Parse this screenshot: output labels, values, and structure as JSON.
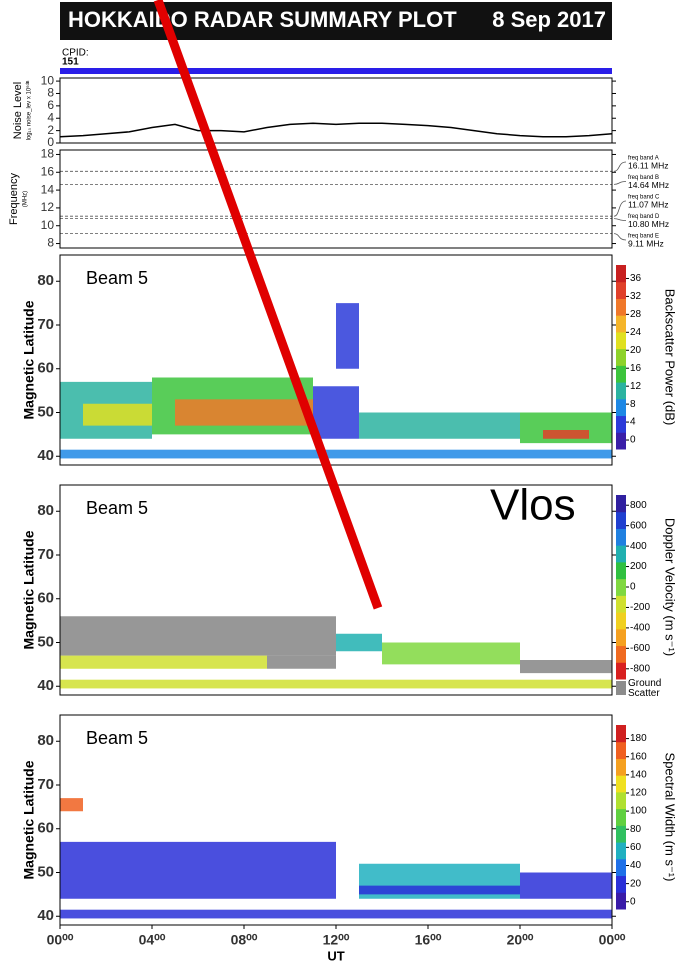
{
  "header": {
    "title": "HOKKAIDO RADAR SUMMARY PLOT",
    "date": "8 Sep 2017",
    "cpid_label": "CPID:",
    "cpid": "151"
  },
  "annotation": "Vlos",
  "chart_data": [
    {
      "type": "line",
      "ylabel": "Noise Level",
      "ylabel_sub": "log₁₀ noise_lev x 10⁶ᵈᴮ",
      "color": "#000000",
      "x": [
        0,
        1,
        2,
        3,
        4,
        5,
        6,
        7,
        8,
        9,
        10,
        11,
        12,
        13,
        14,
        15,
        16,
        17,
        18,
        19,
        20,
        21,
        22,
        23,
        24
      ],
      "values": [
        1,
        1.2,
        1.5,
        1.8,
        2.5,
        3,
        2,
        2,
        1.8,
        2.5,
        3,
        3.2,
        3,
        3.2,
        3.2,
        3,
        2.8,
        2.5,
        2,
        1.5,
        1.2,
        1,
        1,
        1.2,
        1.5
      ],
      "xlim": [
        0,
        24
      ],
      "ylim": [
        0,
        10.5
      ],
      "yticks": [
        0,
        2,
        4,
        6,
        8,
        10
      ]
    },
    {
      "type": "bands",
      "ylabel": "Frequency",
      "ylabel_sub": "(MHz)",
      "xlim": [
        0,
        24
      ],
      "ylim": [
        7.5,
        18.5
      ],
      "yticks": [
        8,
        10,
        12,
        14,
        16,
        18
      ],
      "bands": [
        {
          "name": "freq band A",
          "value": 16.11,
          "label": "16.11 MHz"
        },
        {
          "name": "freq band B",
          "value": 14.64,
          "label": "14.64 MHz"
        },
        {
          "name": "freq band C",
          "value": 11.07,
          "label": "11.07 MHz"
        },
        {
          "name": "freq band D",
          "value": 10.8,
          "label": "10.80 MHz"
        },
        {
          "name": "freq band E",
          "value": 9.11,
          "label": "9.11 MHz"
        }
      ]
    },
    {
      "type": "heatmap",
      "label": "Beam 5",
      "ylabel": "Magnetic Latitude",
      "colorbar_label": "Backscatter Power (dB)",
      "xlim": [
        0,
        24
      ],
      "ylim": [
        38,
        86
      ],
      "yticks": [
        40,
        50,
        60,
        70,
        80
      ],
      "clim": [
        -2,
        39
      ],
      "cticks": [
        0,
        4,
        8,
        12,
        16,
        20,
        24,
        28,
        32,
        36
      ],
      "colorscale": [
        "#3b1fa8",
        "#2c3bd9",
        "#1e88e5",
        "#2bb3a0",
        "#3cc43c",
        "#8ed22a",
        "#e0e020",
        "#f5b52a",
        "#f0782a",
        "#e0402a",
        "#c82020"
      ],
      "regions": [
        {
          "start": 0,
          "end": 4,
          "lat_low": 44,
          "lat_high": 57,
          "value": 12
        },
        {
          "start": 1,
          "end": 4,
          "lat_low": 47,
          "lat_high": 52,
          "value": 24
        },
        {
          "start": 4,
          "end": 11,
          "lat_low": 45,
          "lat_high": 58,
          "value": 16
        },
        {
          "start": 5,
          "end": 11,
          "lat_low": 47,
          "lat_high": 53,
          "value": 28
        },
        {
          "start": 11,
          "end": 13,
          "lat_low": 44,
          "lat_high": 56,
          "value": 4
        },
        {
          "start": 13,
          "end": 20,
          "lat_low": 44,
          "lat_high": 50,
          "value": 12
        },
        {
          "start": 20,
          "end": 24,
          "lat_low": 43,
          "lat_high": 50,
          "value": 16
        },
        {
          "start": 21,
          "end": 23,
          "lat_low": 44,
          "lat_high": 46,
          "value": 32
        },
        {
          "start": 0,
          "end": 24,
          "lat_low": 39.5,
          "lat_high": 41.5,
          "value": 8
        },
        {
          "start": 12,
          "end": 13,
          "lat_low": 60,
          "lat_high": 75,
          "value": 4
        }
      ]
    },
    {
      "type": "heatmap",
      "label": "Beam 5",
      "ylabel": "Magnetic Latitude",
      "colorbar_label": "Doppler Velocity (m s⁻¹)",
      "ground_scatter_label": "Ground Scatter",
      "ground_scatter_color": "#8c8c8c",
      "xlim": [
        0,
        24
      ],
      "ylim": [
        38,
        86
      ],
      "yticks": [
        40,
        50,
        60,
        70,
        80
      ],
      "clim": [
        -900,
        900
      ],
      "cticks": [
        -800,
        -600,
        -400,
        -200,
        0,
        200,
        400,
        600,
        800
      ],
      "colorscale": [
        "#d82020",
        "#f06a20",
        "#f5a020",
        "#f0d020",
        "#d0e030",
        "#80d840",
        "#30c040",
        "#20b0b0",
        "#2080e0",
        "#2040d0",
        "#3020a0"
      ],
      "ground_scatter": [
        {
          "start": 0,
          "end": 12,
          "lat_low": 47,
          "lat_high": 56
        },
        {
          "start": 9,
          "end": 12,
          "lat_low": 44,
          "lat_high": 47
        },
        {
          "start": 20,
          "end": 24,
          "lat_low": 43,
          "lat_high": 46
        }
      ],
      "regions": [
        {
          "start": 0,
          "end": 9,
          "lat_low": 44,
          "lat_high": 47,
          "value": -200
        },
        {
          "start": 12,
          "end": 14,
          "lat_low": 48,
          "lat_high": 52,
          "value": 300
        },
        {
          "start": 14,
          "end": 20,
          "lat_low": 45,
          "lat_high": 50,
          "value": 0
        },
        {
          "start": 0,
          "end": 24,
          "lat_low": 39.5,
          "lat_high": 41.5,
          "value": -150
        }
      ]
    },
    {
      "type": "heatmap",
      "label": "Beam 5",
      "ylabel": "Magnetic Latitude",
      "colorbar_label": "Spectral Width (m s⁻¹)",
      "xlim": [
        0,
        24
      ],
      "ylim": [
        38,
        86
      ],
      "yticks": [
        40,
        50,
        60,
        70,
        80
      ],
      "clim": [
        -8,
        195
      ],
      "cticks": [
        0,
        20,
        40,
        60,
        80,
        100,
        120,
        140,
        160,
        180
      ],
      "colorscale": [
        "#3a1ca8",
        "#2a30d8",
        "#1f70e8",
        "#20b0c0",
        "#30c060",
        "#60d040",
        "#b0e030",
        "#f0e020",
        "#f5a020",
        "#f06020",
        "#d02020"
      ],
      "xlabel": "UT",
      "xticks": [
        {
          "value": 0,
          "label": "00⁰⁰"
        },
        {
          "value": 4,
          "label": "04⁰⁰"
        },
        {
          "value": 8,
          "label": "08⁰⁰"
        },
        {
          "value": 12,
          "label": "12⁰⁰"
        },
        {
          "value": 16,
          "label": "16⁰⁰"
        },
        {
          "value": 20,
          "label": "20⁰⁰"
        },
        {
          "value": 24,
          "label": "00⁰⁰"
        }
      ],
      "regions": [
        {
          "start": 0,
          "end": 12,
          "lat_low": 44,
          "lat_high": 57,
          "value": 20
        },
        {
          "start": 13,
          "end": 20,
          "lat_low": 44,
          "lat_high": 52,
          "value": 60
        },
        {
          "start": 13,
          "end": 20,
          "lat_low": 45,
          "lat_high": 47,
          "value": 20
        },
        {
          "start": 20,
          "end": 24,
          "lat_low": 44,
          "lat_high": 50,
          "value": 20
        },
        {
          "start": 0,
          "end": 24,
          "lat_low": 39.5,
          "lat_high": 41.5,
          "value": 20
        },
        {
          "start": 0,
          "end": 1,
          "lat_low": 64,
          "lat_high": 67,
          "value": 170
        }
      ]
    }
  ]
}
